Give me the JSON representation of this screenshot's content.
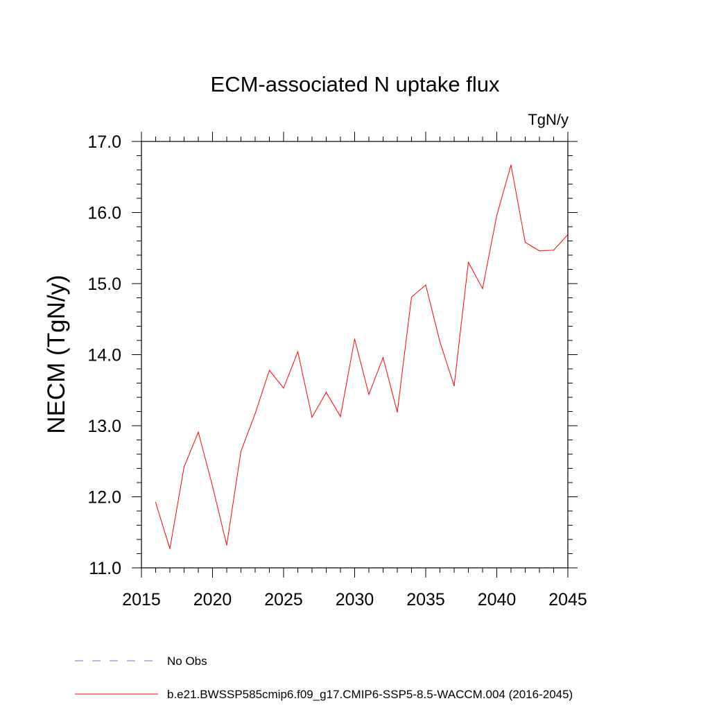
{
  "chart_data": {
    "type": "line",
    "title": "ECM-associated N uptake flux",
    "units": "TgN/y",
    "xlabel": "",
    "ylabel": "NECM  (TgN/y)",
    "xlim": [
      2015,
      2045
    ],
    "ylim": [
      11.0,
      17.0
    ],
    "x_major_ticks": [
      2015,
      2020,
      2025,
      2030,
      2035,
      2040,
      2045
    ],
    "x_tick_labels": [
      "2015",
      "2020",
      "2025",
      "2030",
      "2035",
      "2040",
      "2045"
    ],
    "y_major_ticks": [
      11.0,
      12.0,
      13.0,
      14.0,
      15.0,
      16.0,
      17.0
    ],
    "y_tick_labels": [
      "11.0",
      "12.0",
      "13.0",
      "14.0",
      "15.0",
      "16.0",
      "17.0"
    ],
    "x_minor_step": 1,
    "y_minor_step": 0.2,
    "grid": false,
    "legend_placement": "bottom",
    "series": [
      {
        "name": "b.e21.BWSSP585cmip6.f09_g17.CMIP6-SSP5-8.5-WACCM.004 (2016-2045)",
        "color": "#ff0000",
        "style": "solid",
        "x": [
          2016,
          2017,
          2018,
          2019,
          2020,
          2021,
          2022,
          2023,
          2024,
          2025,
          2026,
          2027,
          2028,
          2029,
          2030,
          2031,
          2032,
          2033,
          2034,
          2035,
          2036,
          2037,
          2038,
          2039,
          2040,
          2041,
          2042,
          2043,
          2044,
          2045
        ],
        "values": [
          11.92,
          11.27,
          12.42,
          12.91,
          12.15,
          11.32,
          12.64,
          13.17,
          13.78,
          13.53,
          14.04,
          13.12,
          13.47,
          13.13,
          14.22,
          13.44,
          13.96,
          13.19,
          14.81,
          14.98,
          14.18,
          13.56,
          15.3,
          14.93,
          15.96,
          16.67,
          15.58,
          15.46,
          15.47,
          15.69
        ]
      },
      {
        "name": "No Obs",
        "color": "#7b68ee",
        "style": "dashed",
        "x": [],
        "values": []
      }
    ]
  }
}
